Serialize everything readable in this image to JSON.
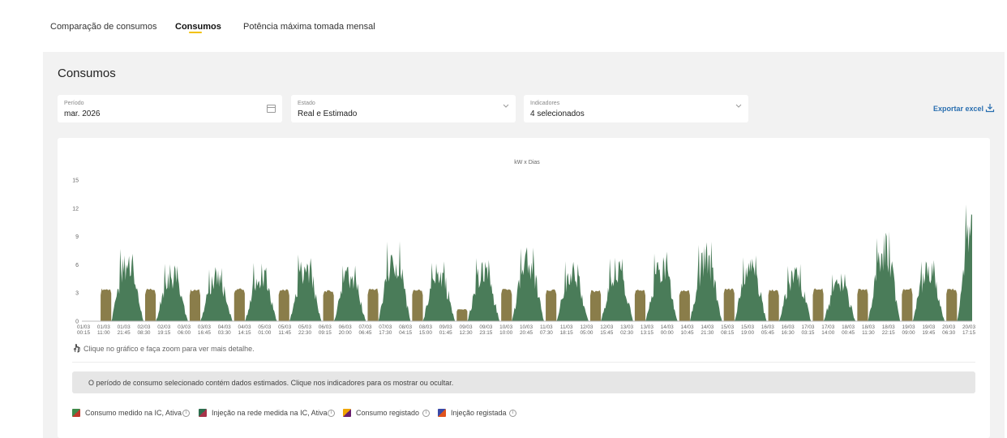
{
  "tabs": [
    {
      "label": "Comparação de consumos",
      "active": false
    },
    {
      "label": "Consumos",
      "active": true
    },
    {
      "label": "Potência máxima tomada mensal",
      "active": false
    }
  ],
  "panel": {
    "title": "Consumos"
  },
  "filters": {
    "period": {
      "label": "Período",
      "value": "mar. 2026",
      "icon": "calendar-icon"
    },
    "state": {
      "label": "Estado",
      "value": "Real e Estimado",
      "icon": "chevron-down-icon"
    },
    "indicators": {
      "label": "Indicadores",
      "value": "4 selecionados",
      "icon": "chevron-down-icon"
    }
  },
  "export": {
    "label": "Exportar excel",
    "icon": "download-icon"
  },
  "chart_data": {
    "type": "area",
    "title": "kW x Dias",
    "ylim": [
      0,
      15
    ],
    "yticks": [
      0,
      3,
      6,
      9,
      12,
      15
    ],
    "x_tick_labels": [
      [
        "01/03",
        "00:15"
      ],
      [
        "01/03",
        "11:00"
      ],
      [
        "01/03",
        "21:45"
      ],
      [
        "02/03",
        "08:30"
      ],
      [
        "02/03",
        "19:15"
      ],
      [
        "03/03",
        "06:00"
      ],
      [
        "03/03",
        "16:45"
      ],
      [
        "04/03",
        "03:30"
      ],
      [
        "04/03",
        "14:15"
      ],
      [
        "05/03",
        "01:00"
      ],
      [
        "05/03",
        "11:45"
      ],
      [
        "05/03",
        "22:30"
      ],
      [
        "06/03",
        "09:15"
      ],
      [
        "06/03",
        "20:00"
      ],
      [
        "07/03",
        "06:45"
      ],
      [
        "07/03",
        "17:30"
      ],
      [
        "08/03",
        "04:15"
      ],
      [
        "08/03",
        "15:00"
      ],
      [
        "09/03",
        "01:45"
      ],
      [
        "09/03",
        "12:30"
      ],
      [
        "09/03",
        "23:15"
      ],
      [
        "10/03",
        "10:00"
      ],
      [
        "10/03",
        "20:45"
      ],
      [
        "11/03",
        "07:30"
      ],
      [
        "11/03",
        "18:15"
      ],
      [
        "12/03",
        "05:00"
      ],
      [
        "12/03",
        "15:45"
      ],
      [
        "13/03",
        "02:30"
      ],
      [
        "13/03",
        "13:15"
      ],
      [
        "14/03",
        "00:00"
      ],
      [
        "14/03",
        "10:45"
      ],
      [
        "14/03",
        "21:30"
      ],
      [
        "15/03",
        "08:15"
      ],
      [
        "15/03",
        "19:00"
      ],
      [
        "16/03",
        "05:45"
      ],
      [
        "16/03",
        "16:30"
      ],
      [
        "17/03",
        "03:15"
      ],
      [
        "17/03",
        "14:00"
      ],
      [
        "18/03",
        "00:45"
      ],
      [
        "18/03",
        "11:30"
      ],
      [
        "18/03",
        "22:15"
      ],
      [
        "19/03",
        "09:00"
      ],
      [
        "19/03",
        "19:45"
      ],
      [
        "20/03",
        "06:30"
      ],
      [
        "20/03",
        "17:15"
      ]
    ],
    "days": [
      "01/03",
      "02/03",
      "03/03",
      "04/03",
      "05/03",
      "06/03",
      "07/03",
      "08/03",
      "09/03",
      "10/03",
      "11/03",
      "12/03",
      "13/03",
      "14/03",
      "15/03",
      "16/03",
      "17/03",
      "18/03",
      "19/03",
      "20/03"
    ],
    "series": [
      {
        "name": "Consumo medido na IC, Ativa",
        "color": "#4a7c59",
        "daily_peaks_kw": [
          7.7,
          6.2,
          5.9,
          6.2,
          7.2,
          6.2,
          8.5,
          6.5,
          6.9,
          8.2,
          6.5,
          6.9,
          7.4,
          8.5,
          7.3,
          6.2,
          5.2,
          9.6,
          6.8,
          13.0
        ]
      },
      {
        "name": "Consumo registado",
        "color": "#8a7d4a",
        "estimated_blocks_kw": [
          3.5,
          3.5,
          3.4,
          3.5,
          3.4,
          3.3,
          3.5,
          3.4,
          1.3,
          3.5,
          3.4,
          3.3,
          3.4,
          3.3,
          3.5,
          3.4,
          3.5,
          3.5,
          3.5,
          3.5
        ]
      }
    ]
  },
  "zoom_hint": "Clique no gráfico e faça zoom para ver mais detalhe.",
  "notice": "O período de consumo selecionado contém dados estimados. Clique nos indicadores para os mostrar ou ocultar.",
  "legend": [
    {
      "label": "Consumo medido na IC, Ativa",
      "color_a": "#3e8a4a",
      "color_b": "#c0392b"
    },
    {
      "label": "Injeção na rede medida na IC, Ativa",
      "color_a": "#2d6e4e",
      "color_b": "#a8324a"
    },
    {
      "label": "Consumo registado",
      "color_a": "#f0a500",
      "color_b": "#6a1f6e"
    },
    {
      "label": "Injeção registada",
      "color_a": "#3a4aa8",
      "color_b": "#e0541e"
    }
  ]
}
